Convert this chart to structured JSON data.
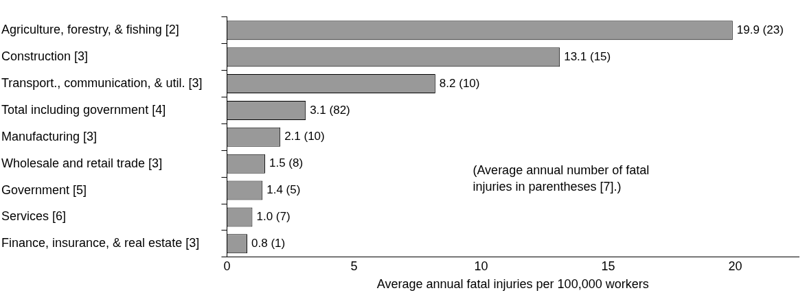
{
  "chart_data": {
    "type": "bar",
    "orientation": "horizontal",
    "xlabel": "Average annual fatal injuries per 100,000 workers",
    "categories": [
      "Agriculture, forestry, & fishing [2]",
      "Construction [3]",
      "Transport., communication, & util. [3]",
      "Total including government [4]",
      "Manufacturing [3]",
      "Wholesale and retail trade [3]",
      "Government [5]",
      "Services [6]",
      "Finance, insurance, & real estate [3]"
    ],
    "values": [
      19.9,
      13.1,
      8.2,
      3.1,
      2.1,
      1.5,
      1.4,
      1.0,
      0.8
    ],
    "value_labels": [
      "19.9 (23)",
      "13.1 (15)",
      "8.2 (10)",
      "3.1 (82)",
      "2.1 (10)",
      "1.5 (8)",
      "1.4 (5)",
      "1.0 (7)",
      "0.8 (1)"
    ],
    "color": "#999999",
    "xlim": [
      0,
      22.5
    ],
    "xticks": [
      0,
      5,
      10,
      15,
      20
    ],
    "annotations": [
      "(Average annual number of fatal injuries in parentheses [7].)"
    ],
    "grid": false,
    "legend": false
  }
}
